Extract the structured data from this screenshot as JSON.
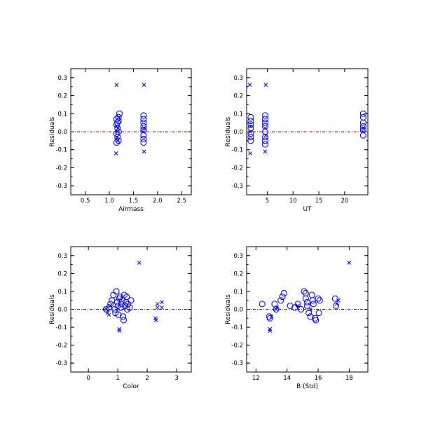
{
  "colors": {
    "points": "#0000ff",
    "reference_line": "#cc0000",
    "frame": "#000000",
    "background": "#ffffff"
  },
  "chart_data": [
    {
      "type": "scatter",
      "xlabel": "Airmass",
      "ylabel": "Residuals",
      "xlim": [
        0.2,
        2.7
      ],
      "ylim": [
        -0.35,
        0.35
      ],
      "xticks": [
        0.5,
        1.0,
        1.5,
        2.0,
        2.5
      ],
      "xtick_labels": [
        "0.5",
        "1.0",
        "1.5",
        "2.0",
        "2.5"
      ],
      "yticks": [
        -0.3,
        -0.2,
        -0.1,
        0.0,
        0.1,
        0.2,
        0.3
      ],
      "ytick_labels": [
        "-0.3",
        "-0.2",
        "-0.1",
        "0.0",
        "0.1",
        "0.2",
        "0.3"
      ],
      "grid": false,
      "reference_line_y": 0.0,
      "series": [
        {
          "marker": "x",
          "points": [
            [
              1.15,
              0.26
            ],
            [
              1.72,
              0.26
            ],
            [
              1.14,
              -0.12
            ],
            [
              1.72,
              -0.11
            ],
            [
              1.15,
              0.03
            ],
            [
              1.16,
              0.0
            ],
            [
              1.18,
              0.02
            ],
            [
              1.16,
              -0.03
            ],
            [
              1.7,
              0.0
            ],
            [
              1.72,
              0.02
            ],
            [
              1.2,
              0.08
            ],
            [
              1.17,
              -0.05
            ]
          ]
        },
        {
          "marker": "o",
          "points": [
            [
              1.15,
              0.07
            ],
            [
              1.19,
              0.08
            ],
            [
              1.21,
              0.1
            ],
            [
              1.17,
              0.05
            ],
            [
              1.15,
              0.04
            ],
            [
              1.17,
              0.02
            ],
            [
              1.19,
              0.0
            ],
            [
              1.15,
              -0.01
            ],
            [
              1.17,
              -0.03
            ],
            [
              1.19,
              -0.05
            ],
            [
              1.15,
              -0.06
            ],
            [
              1.19,
              0.06
            ],
            [
              1.71,
              0.09
            ],
            [
              1.71,
              0.07
            ],
            [
              1.71,
              0.05
            ],
            [
              1.71,
              0.03
            ],
            [
              1.71,
              0.01
            ],
            [
              1.71,
              -0.02
            ],
            [
              1.71,
              -0.04
            ],
            [
              1.71,
              -0.06
            ]
          ]
        }
      ]
    },
    {
      "type": "scatter",
      "xlabel": "UT",
      "ylabel": "Residuals",
      "xlim": [
        1,
        24.5
      ],
      "ylim": [
        -0.35,
        0.35
      ],
      "xticks": [
        5,
        10,
        15,
        20
      ],
      "xtick_labels": [
        "5",
        "10",
        "15",
        "20"
      ],
      "yticks": [
        -0.3,
        -0.2,
        -0.1,
        0.0,
        0.1,
        0.2,
        0.3
      ],
      "ytick_labels": [
        "-0.3",
        "-0.2",
        "-0.1",
        "0.0",
        "0.1",
        "0.2",
        "0.3"
      ],
      "grid": false,
      "reference_line_y": 0.0,
      "series": [
        {
          "marker": "x",
          "points": [
            [
              1.6,
              0.26
            ],
            [
              4.7,
              0.26
            ],
            [
              1.7,
              -0.12
            ],
            [
              4.6,
              -0.11
            ],
            [
              1.8,
              0.03
            ],
            [
              1.7,
              0.0
            ],
            [
              4.6,
              0.02
            ],
            [
              4.7,
              -0.02
            ],
            [
              23.6,
              0.0
            ],
            [
              23.6,
              0.02
            ]
          ]
        },
        {
          "marker": "o",
          "points": [
            [
              1.8,
              0.08
            ],
            [
              1.8,
              0.06
            ],
            [
              1.8,
              0.04
            ],
            [
              1.8,
              0.02
            ],
            [
              1.8,
              -0.01
            ],
            [
              1.8,
              -0.03
            ],
            [
              1.8,
              -0.05
            ],
            [
              4.6,
              0.09
            ],
            [
              4.6,
              0.07
            ],
            [
              4.6,
              0.05
            ],
            [
              4.6,
              0.03
            ],
            [
              4.6,
              0.0
            ],
            [
              4.6,
              -0.03
            ],
            [
              4.6,
              -0.05
            ],
            [
              4.6,
              -0.07
            ],
            [
              23.6,
              0.1
            ],
            [
              23.6,
              0.08
            ],
            [
              23.6,
              0.05
            ],
            [
              23.6,
              0.03
            ],
            [
              23.6,
              0.01
            ],
            [
              23.6,
              -0.02
            ]
          ]
        }
      ]
    },
    {
      "type": "scatter",
      "xlabel": "Color",
      "ylabel": "Residuals",
      "xlim": [
        -0.6,
        3.5
      ],
      "ylim": [
        -0.35,
        0.35
      ],
      "xticks": [
        0,
        1,
        2,
        3
      ],
      "xtick_labels": [
        "0",
        "1",
        "2",
        "3"
      ],
      "yticks": [
        -0.3,
        -0.2,
        -0.1,
        0.0,
        0.1,
        0.2,
        0.3
      ],
      "ytick_labels": [
        "-0.3",
        "-0.2",
        "-0.1",
        "0.0",
        "0.1",
        "0.2",
        "0.3"
      ],
      "grid": false,
      "reference_line_y": 0.0,
      "series": [
        {
          "marker": "x",
          "points": [
            [
              1.73,
              0.26
            ],
            [
              1.05,
              -0.11
            ],
            [
              1.05,
              -0.12
            ],
            [
              2.28,
              -0.05
            ],
            [
              2.3,
              -0.06
            ],
            [
              2.35,
              0.03
            ],
            [
              2.35,
              0.01
            ],
            [
              2.5,
              0.04
            ],
            [
              2.5,
              0.01
            ],
            [
              0.6,
              0.0
            ],
            [
              0.65,
              -0.02
            ],
            [
              0.7,
              -0.03
            ],
            [
              0.75,
              0.02
            ]
          ]
        },
        {
          "marker": "o",
          "points": [
            [
              0.6,
              0.0
            ],
            [
              0.7,
              0.01
            ],
            [
              0.75,
              0.03
            ],
            [
              0.8,
              0.05
            ],
            [
              0.85,
              0.08
            ],
            [
              0.9,
              0.0
            ],
            [
              0.92,
              -0.02
            ],
            [
              0.95,
              0.1
            ],
            [
              0.98,
              0.04
            ],
            [
              1.0,
              0.02
            ],
            [
              1.02,
              -0.03
            ],
            [
              1.05,
              0.06
            ],
            [
              1.08,
              0.07
            ],
            [
              1.1,
              0.01
            ],
            [
              1.12,
              0.03
            ],
            [
              1.15,
              0.05
            ],
            [
              1.18,
              -0.04
            ],
            [
              1.2,
              -0.06
            ],
            [
              1.22,
              0.08
            ],
            [
              1.25,
              0.02
            ],
            [
              1.28,
              0.04
            ],
            [
              1.3,
              0.07
            ],
            [
              1.32,
              0.0
            ],
            [
              1.35,
              0.03
            ],
            [
              1.4,
              0.01
            ],
            [
              1.45,
              0.05
            ]
          ]
        }
      ]
    },
    {
      "type": "scatter",
      "xlabel": "B (Std)",
      "ylabel": "Residuals",
      "xlim": [
        11.4,
        19.2
      ],
      "ylim": [
        -0.35,
        0.35
      ],
      "xticks": [
        12,
        14,
        16,
        18
      ],
      "xtick_labels": [
        "12",
        "14",
        "16",
        "18"
      ],
      "yticks": [
        -0.3,
        -0.2,
        -0.1,
        0.0,
        0.1,
        0.2,
        0.3
      ],
      "ytick_labels": [
        "-0.3",
        "-0.2",
        "-0.1",
        "0.0",
        "0.1",
        "0.2",
        "0.3"
      ],
      "grid": false,
      "reference_line_y": 0.0,
      "series": [
        {
          "marker": "x",
          "points": [
            [
              18.0,
              0.26
            ],
            [
              12.9,
              -0.11
            ],
            [
              12.9,
              -0.12
            ],
            [
              13.0,
              -0.04
            ],
            [
              13.3,
              0.0
            ],
            [
              13.35,
              0.01
            ],
            [
              14.7,
              0.02
            ],
            [
              15.5,
              0.0
            ],
            [
              17.2,
              0.03
            ],
            [
              17.3,
              0.05
            ]
          ]
        },
        {
          "marker": "o",
          "points": [
            [
              12.4,
              0.03
            ],
            [
              12.85,
              -0.04
            ],
            [
              12.9,
              -0.05
            ],
            [
              13.2,
              0.03
            ],
            [
              13.3,
              0.0
            ],
            [
              13.6,
              0.05
            ],
            [
              13.7,
              0.07
            ],
            [
              13.8,
              0.09
            ],
            [
              14.2,
              0.02
            ],
            [
              14.5,
              0.01
            ],
            [
              14.7,
              0.03
            ],
            [
              14.9,
              0.0
            ],
            [
              15.1,
              0.1
            ],
            [
              15.2,
              0.09
            ],
            [
              15.2,
              0.06
            ],
            [
              15.3,
              0.04
            ],
            [
              15.3,
              0.02
            ],
            [
              15.4,
              -0.02
            ],
            [
              15.5,
              -0.04
            ],
            [
              15.6,
              0.08
            ],
            [
              15.65,
              0.05
            ],
            [
              15.7,
              0.03
            ],
            [
              15.8,
              -0.05
            ],
            [
              15.85,
              -0.06
            ],
            [
              16.0,
              0.06
            ],
            [
              16.05,
              -0.02
            ],
            [
              16.1,
              0.05
            ],
            [
              17.1,
              0.06
            ],
            [
              17.15,
              0.02
            ]
          ]
        }
      ]
    }
  ]
}
